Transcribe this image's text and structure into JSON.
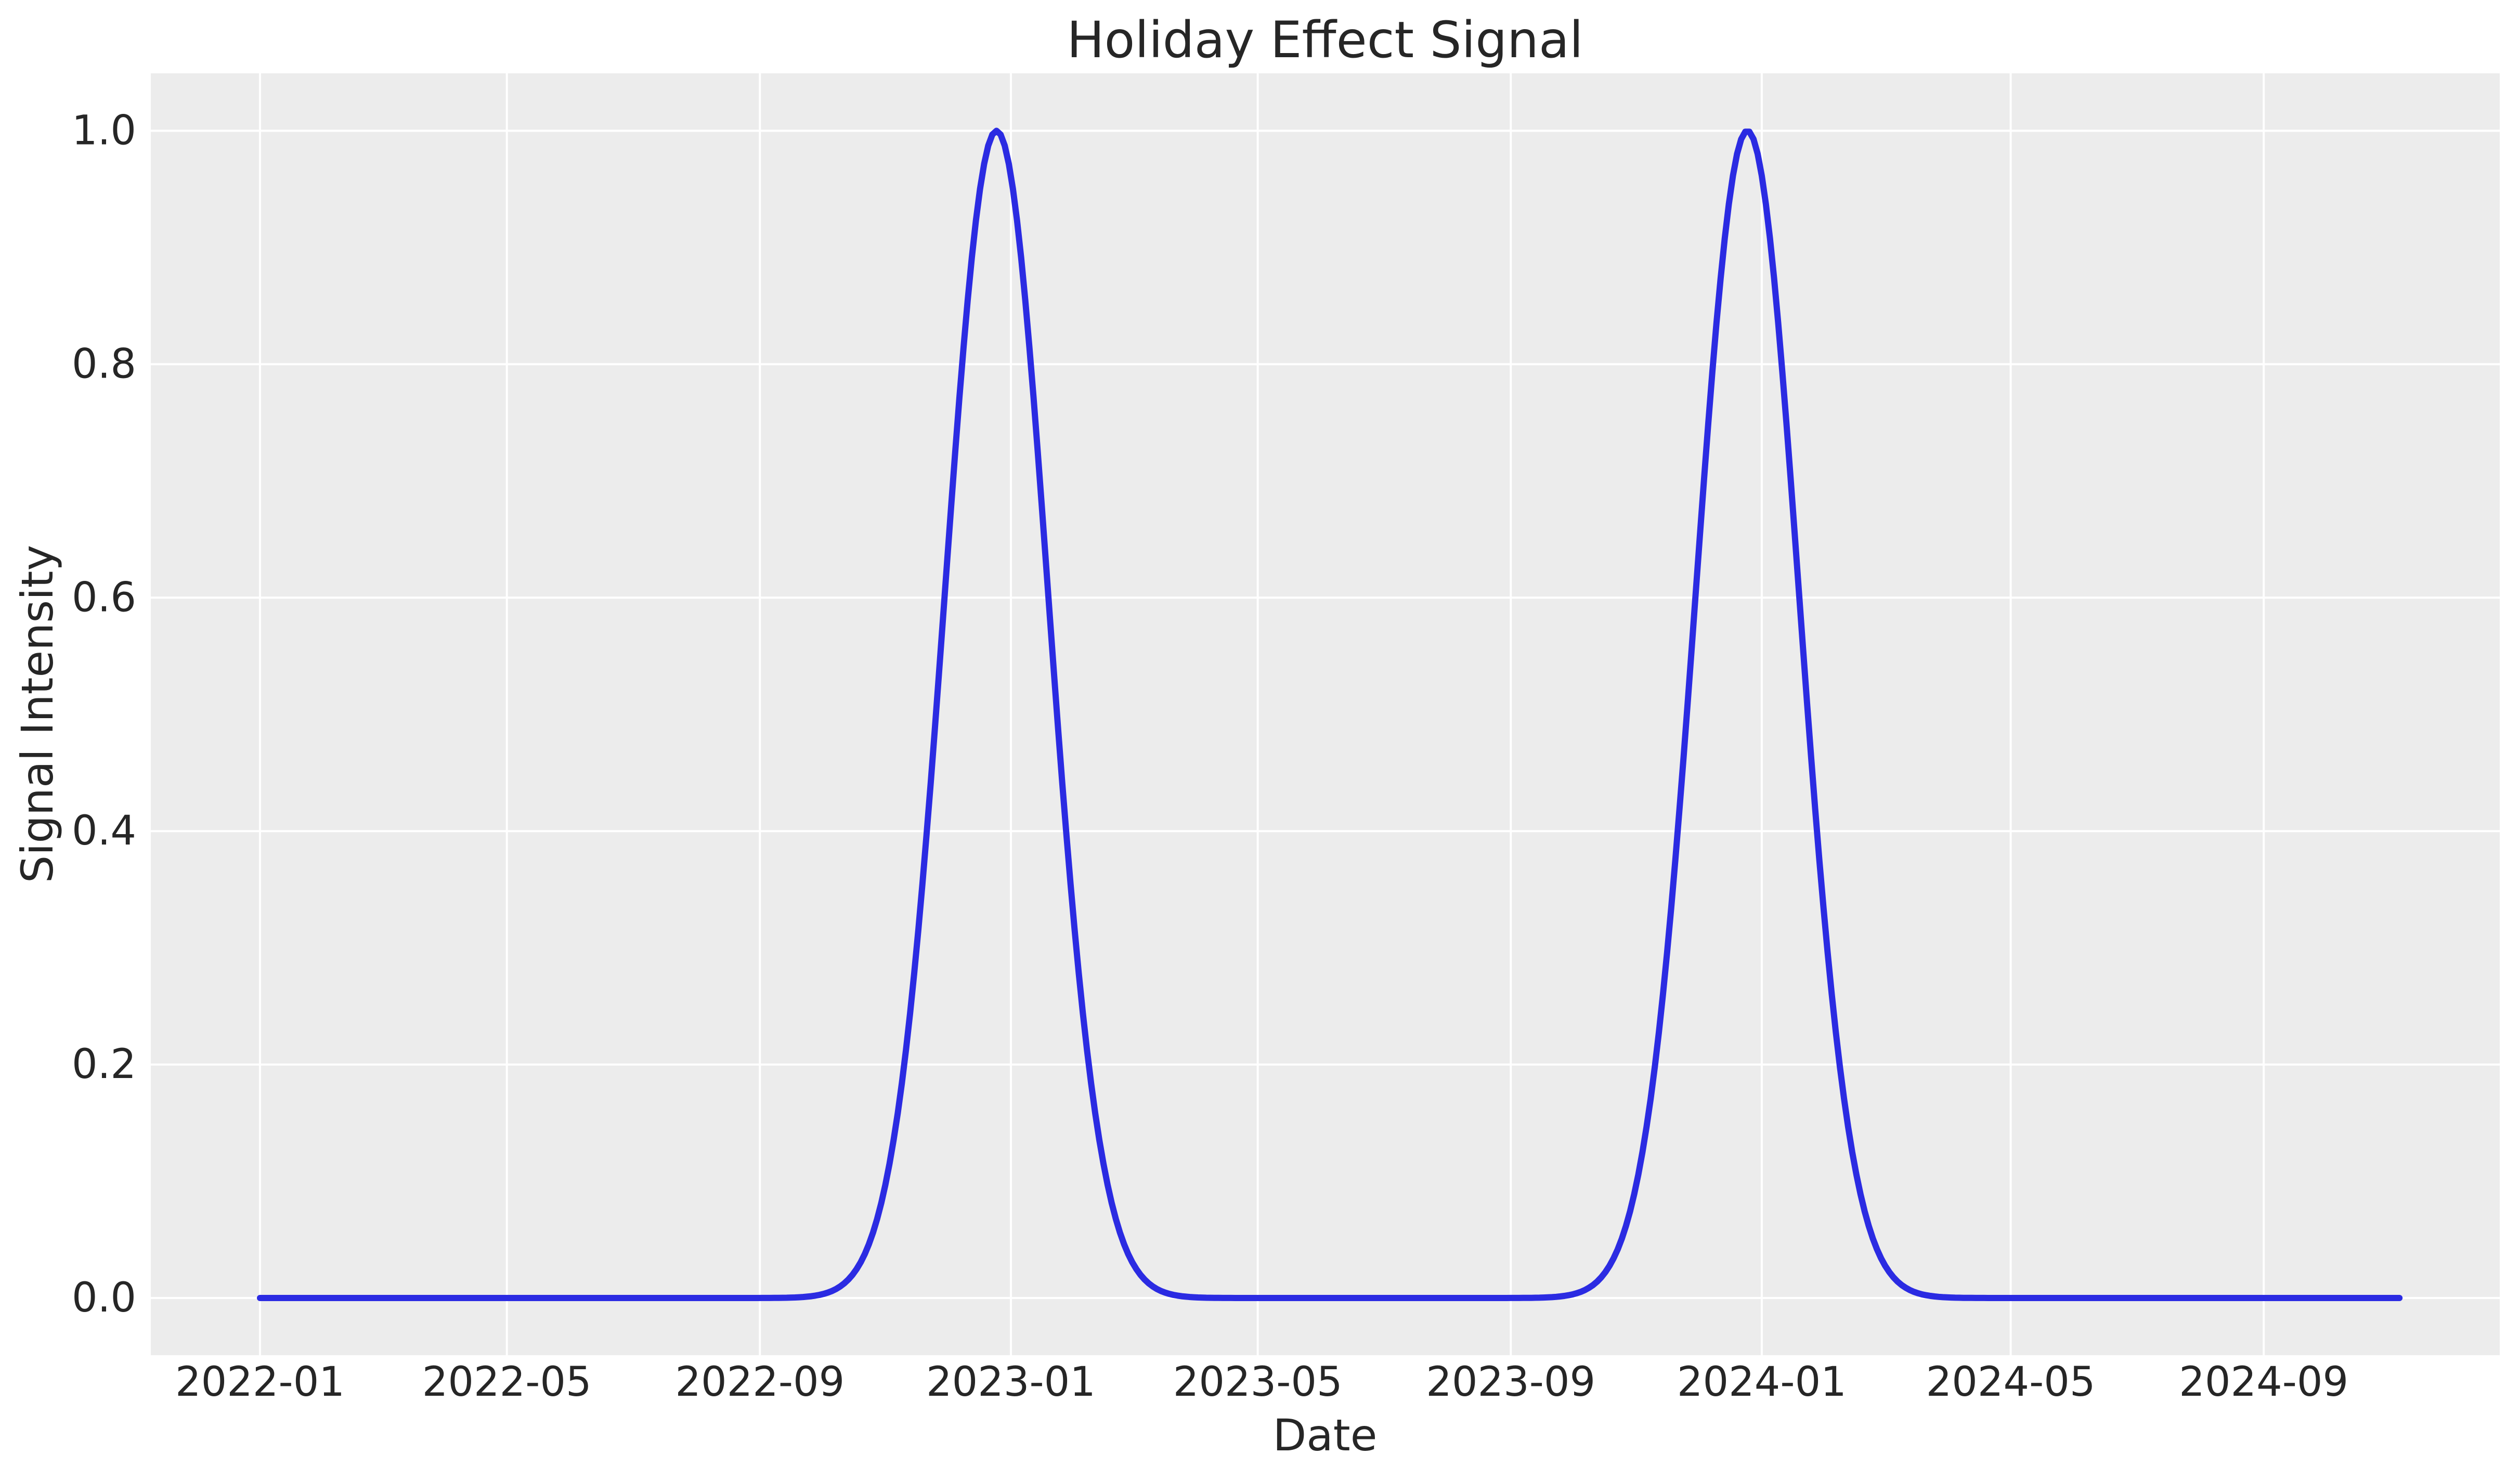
{
  "chart_data": {
    "type": "line",
    "title": "Holiday Effect Signal",
    "xlabel": "Date",
    "ylabel": "Signal Intensity",
    "plot_background": "#ececec",
    "grid_color": "#ffffff",
    "text_color": "#262626",
    "line_color": "#2b2be2",
    "grid": "on",
    "legend": "none",
    "x_range": {
      "start": "2022-01-01",
      "end": "2024-11-06"
    },
    "ylim": [
      -0.05,
      1.05
    ],
    "x_ticks": [
      "2022-01",
      "2022-05",
      "2022-09",
      "2023-01",
      "2023-05",
      "2023-09",
      "2024-01",
      "2024-05",
      "2024-09"
    ],
    "y_ticks": [
      0.0,
      0.2,
      0.4,
      0.6,
      0.8,
      1.0
    ],
    "series": [
      {
        "name": "holiday_effect",
        "model": "gaussian_peaks",
        "baseline": 0.0,
        "amplitude": 1.0,
        "sigma_days": 25,
        "peak_dates": [
          "2022-12-25",
          "2023-12-25"
        ]
      }
    ],
    "sample_points": [
      {
        "date": "2022-01-01",
        "value": 0.0
      },
      {
        "date": "2022-02-01",
        "value": 0.0
      },
      {
        "date": "2022-03-01",
        "value": 0.0
      },
      {
        "date": "2022-04-01",
        "value": 0.0
      },
      {
        "date": "2022-05-01",
        "value": 0.0
      },
      {
        "date": "2022-06-01",
        "value": 0.0
      },
      {
        "date": "2022-07-01",
        "value": 0.0
      },
      {
        "date": "2022-08-01",
        "value": 0.0
      },
      {
        "date": "2022-09-01",
        "value": 0.0
      },
      {
        "date": "2022-10-01",
        "value": 0.003
      },
      {
        "date": "2022-11-01",
        "value": 0.097
      },
      {
        "date": "2022-12-01",
        "value": 0.631
      },
      {
        "date": "2022-12-25",
        "value": 1.0
      },
      {
        "date": "2023-01-01",
        "value": 0.962
      },
      {
        "date": "2023-02-01",
        "value": 0.315
      },
      {
        "date": "2023-03-01",
        "value": 0.031
      },
      {
        "date": "2023-04-01",
        "value": 0.001
      },
      {
        "date": "2023-05-01",
        "value": 0.0
      },
      {
        "date": "2023-06-01",
        "value": 0.0
      },
      {
        "date": "2023-07-01",
        "value": 0.0
      },
      {
        "date": "2023-08-01",
        "value": 0.0
      },
      {
        "date": "2023-09-01",
        "value": 0.0
      },
      {
        "date": "2023-10-01",
        "value": 0.003
      },
      {
        "date": "2023-11-01",
        "value": 0.097
      },
      {
        "date": "2023-12-01",
        "value": 0.631
      },
      {
        "date": "2023-12-25",
        "value": 1.0
      },
      {
        "date": "2024-01-01",
        "value": 0.962
      },
      {
        "date": "2024-02-01",
        "value": 0.315
      },
      {
        "date": "2024-03-01",
        "value": 0.031
      },
      {
        "date": "2024-04-01",
        "value": 0.001
      },
      {
        "date": "2024-05-01",
        "value": 0.0
      },
      {
        "date": "2024-06-01",
        "value": 0.0
      },
      {
        "date": "2024-07-01",
        "value": 0.0
      },
      {
        "date": "2024-08-01",
        "value": 0.0
      },
      {
        "date": "2024-09-01",
        "value": 0.0
      },
      {
        "date": "2024-10-01",
        "value": 0.0
      },
      {
        "date": "2024-11-06",
        "value": 0.0
      }
    ]
  }
}
